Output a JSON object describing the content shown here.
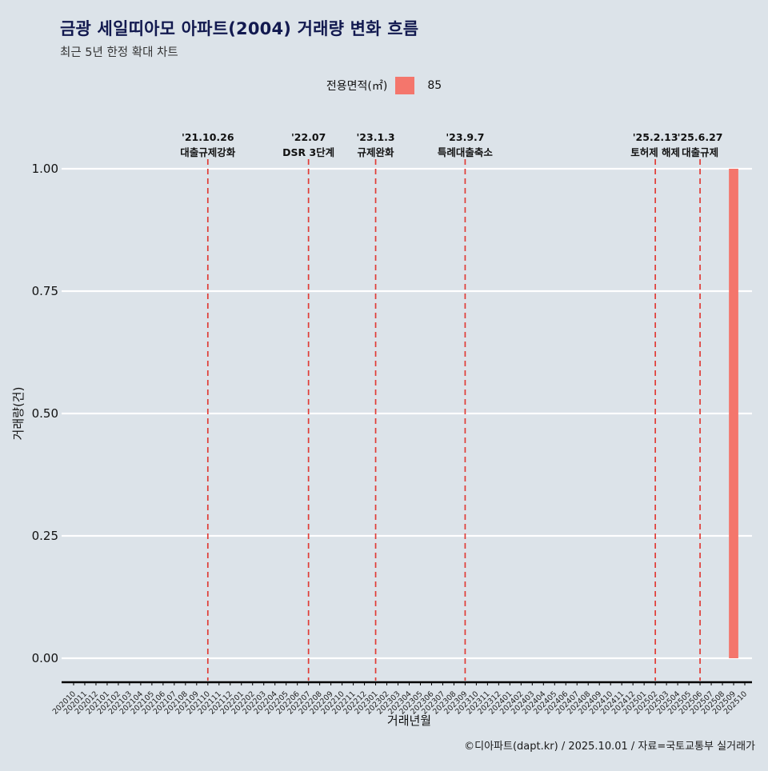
{
  "title": "금광 세일띠아모 아파트(2004) 거래량 변화 흐름",
  "subtitle": "최근 5년 한정 확대 차트",
  "legend": {
    "label": "전용면적(㎡)",
    "value": "85",
    "swatch_color": "#f4766c"
  },
  "footer": "©디아파트(dapt.kr) / 2025.10.01 / 자료=국토교통부 실거래가",
  "chart_data": {
    "type": "bar",
    "title": "금광 세일띠아모 아파트(2004) 거래량 변화 흐름",
    "xlabel": "거래년월",
    "ylabel": "거래량(건)",
    "ylim": [
      0,
      1
    ],
    "yticks": [
      0,
      0.25,
      0.5,
      0.75,
      1.0
    ],
    "ytick_labels": [
      "0.00",
      "0.25",
      "0.50",
      "0.75",
      "1.00"
    ],
    "grid": true,
    "gridline_color": "#ffffff",
    "background": "#dce3e9",
    "legend_position": "top",
    "categories": [
      "202010",
      "202011",
      "202012",
      "202101",
      "202102",
      "202103",
      "202104",
      "202105",
      "202106",
      "202107",
      "202108",
      "202109",
      "202110",
      "202111",
      "202112",
      "202201",
      "202202",
      "202203",
      "202204",
      "202205",
      "202206",
      "202207",
      "202208",
      "202209",
      "202210",
      "202211",
      "202212",
      "202301",
      "202302",
      "202303",
      "202304",
      "202305",
      "202306",
      "202307",
      "202308",
      "202309",
      "202310",
      "202311",
      "202312",
      "202401",
      "202402",
      "202403",
      "202404",
      "202405",
      "202406",
      "202407",
      "202408",
      "202409",
      "202410",
      "202411",
      "202412",
      "202501",
      "202502",
      "202503",
      "202504",
      "202505",
      "202506",
      "202507",
      "202508",
      "202509",
      "202510"
    ],
    "series": [
      {
        "name": "85",
        "color": "#f4766c",
        "values": [
          0,
          0,
          0,
          0,
          0,
          0,
          0,
          0,
          0,
          0,
          0,
          0,
          0,
          0,
          0,
          0,
          0,
          0,
          0,
          0,
          0,
          0,
          0,
          0,
          0,
          0,
          0,
          0,
          0,
          0,
          0,
          0,
          0,
          0,
          0,
          0,
          0,
          0,
          0,
          0,
          0,
          0,
          0,
          0,
          0,
          0,
          0,
          0,
          0,
          0,
          0,
          0,
          0,
          0,
          0,
          0,
          0,
          0,
          0,
          1,
          0
        ]
      }
    ],
    "event_line_color": "#e03c36",
    "events": [
      {
        "x": "202110",
        "date": "'21.10.26",
        "label": "대출규제강화"
      },
      {
        "x": "202207",
        "date": "'22.07",
        "label": "DSR 3단계"
      },
      {
        "x": "202301",
        "date": "'23.1.3",
        "label": "규제완화"
      },
      {
        "x": "202309",
        "date": "'23.9.7",
        "label": "특례대출축소"
      },
      {
        "x": "202502",
        "date": "'25.2.13",
        "label": "토허제 해제"
      },
      {
        "x": "202506",
        "date": "'25.6.27",
        "label": "대출규제"
      }
    ]
  }
}
